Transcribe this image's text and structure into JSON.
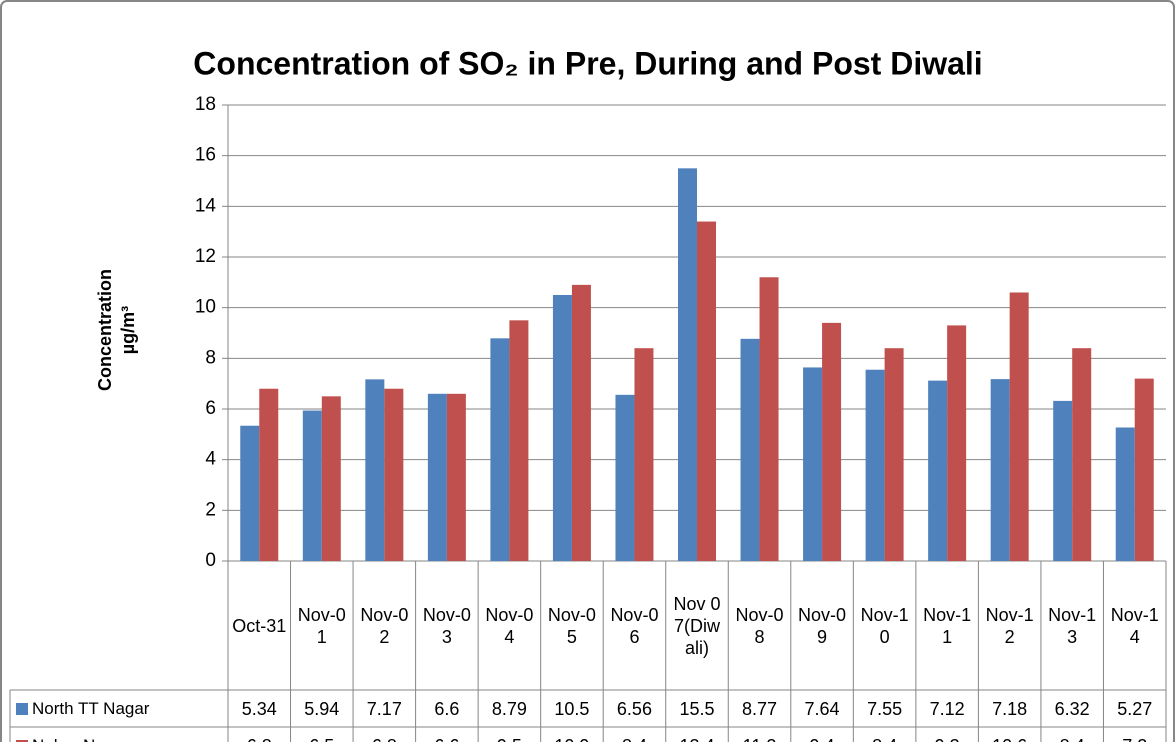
{
  "chart_data": {
    "type": "bar",
    "title": "Concentration of SO₂ in Pre, During and Post Diwali",
    "y_label": [
      "Concentration",
      "µg/m³"
    ],
    "categories": [
      "Oct-31",
      "Nov-01",
      "Nov-02",
      "Nov-03",
      "Nov-04",
      "Nov-05",
      "Nov-06",
      "Nov 07(Diwali)",
      "Nov-08",
      "Nov-09",
      "Nov-10",
      "Nov-11",
      "Nov-12",
      "Nov-13",
      "Nov-14"
    ],
    "series": [
      {
        "name": "North TT Nagar",
        "color": "#4f81bd",
        "values": [
          5.34,
          5.94,
          7.17,
          6.6,
          8.79,
          10.5,
          6.56,
          15.5,
          8.77,
          7.64,
          7.55,
          7.12,
          7.18,
          6.32,
          5.27
        ]
      },
      {
        "name": "Nehru Nagar",
        "color": "#c0504d",
        "values": [
          6.8,
          6.5,
          6.8,
          6.6,
          9.5,
          10.9,
          8.4,
          13.4,
          11.2,
          9.4,
          8.4,
          9.3,
          10.6,
          8.4,
          7.2
        ]
      }
    ],
    "ylim": [
      0,
      18
    ],
    "yticks": [
      0,
      2,
      4,
      6,
      8,
      10,
      12,
      14,
      16,
      18
    ],
    "grid": true
  }
}
